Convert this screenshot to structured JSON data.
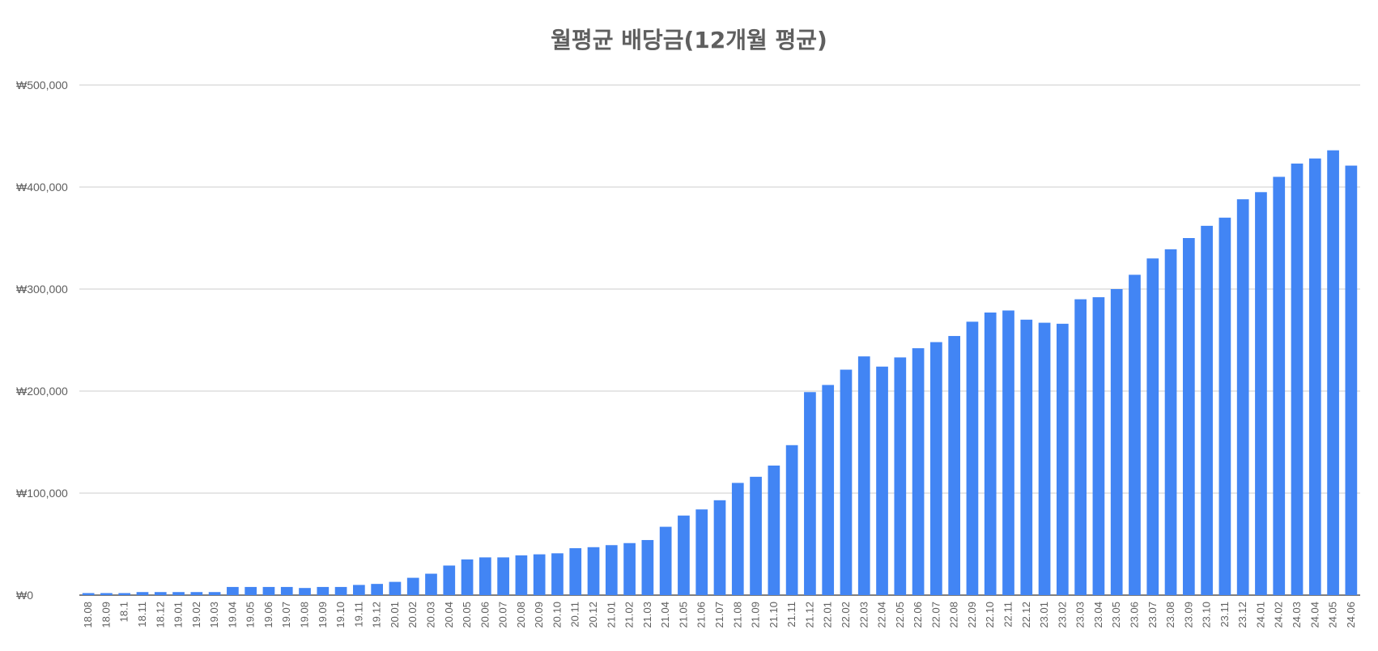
{
  "chart_data": {
    "type": "bar",
    "title": "월평균 배당금(12개월 평균)",
    "xlabel": "",
    "ylabel": "",
    "ylim": [
      0,
      500000
    ],
    "y_ticks": [
      0,
      100000,
      200000,
      300000,
      400000,
      500000
    ],
    "y_tick_labels": [
      "₩0",
      "₩100,000",
      "₩200,000",
      "₩300,000",
      "₩400,000",
      "₩500,000"
    ],
    "grid": true,
    "legend": "none",
    "colors": {
      "bar": "#4285f4",
      "grid": "#cccccc",
      "axis": "#333333",
      "text": "#5f5f5f"
    },
    "categories": [
      "18.08",
      "18.09",
      "18.1",
      "18.11",
      "18.12",
      "19.01",
      "19.02",
      "19.03",
      "19.04",
      "19.05",
      "19.06",
      "19.07",
      "19.08",
      "19.09",
      "19.10",
      "19.11",
      "19.12",
      "20.01",
      "20.02",
      "20.03",
      "20.04",
      "20.05",
      "20.06",
      "20.07",
      "20.08",
      "20.09",
      "20.10",
      "20.11",
      "20.12",
      "21.01",
      "21.02",
      "21.03",
      "21.04",
      "21.05",
      "21.06",
      "21.07",
      "21.08",
      "21.09",
      "21.10",
      "21.11",
      "21.12",
      "22.01",
      "22.02",
      "22.03",
      "22.04",
      "22.05",
      "22.06",
      "22.07",
      "22.08",
      "22.09",
      "22.10",
      "22.11",
      "22.12",
      "23.01",
      "23.02",
      "23.03",
      "23.04",
      "23.05",
      "23.06",
      "23.07",
      "23.08",
      "23.09",
      "23.10",
      "23.11",
      "23.12",
      "24.01",
      "24.02",
      "24.03",
      "24.04",
      "24.05",
      "24.06"
    ],
    "values": [
      2000,
      2000,
      2000,
      3000,
      3000,
      3000,
      3000,
      3000,
      8000,
      8000,
      8000,
      8000,
      7000,
      8000,
      8000,
      10000,
      11000,
      13000,
      17000,
      21000,
      29000,
      35000,
      37000,
      37000,
      39000,
      40000,
      41000,
      46000,
      47000,
      49000,
      51000,
      54000,
      67000,
      78000,
      84000,
      93000,
      110000,
      116000,
      127000,
      147000,
      199000,
      206000,
      221000,
      234000,
      224000,
      233000,
      242000,
      248000,
      254000,
      268000,
      277000,
      279000,
      270000,
      267000,
      266000,
      290000,
      292000,
      300000,
      314000,
      330000,
      339000,
      350000,
      362000,
      370000,
      388000,
      395000,
      410000,
      423000,
      428000,
      436000,
      421000
    ]
  }
}
